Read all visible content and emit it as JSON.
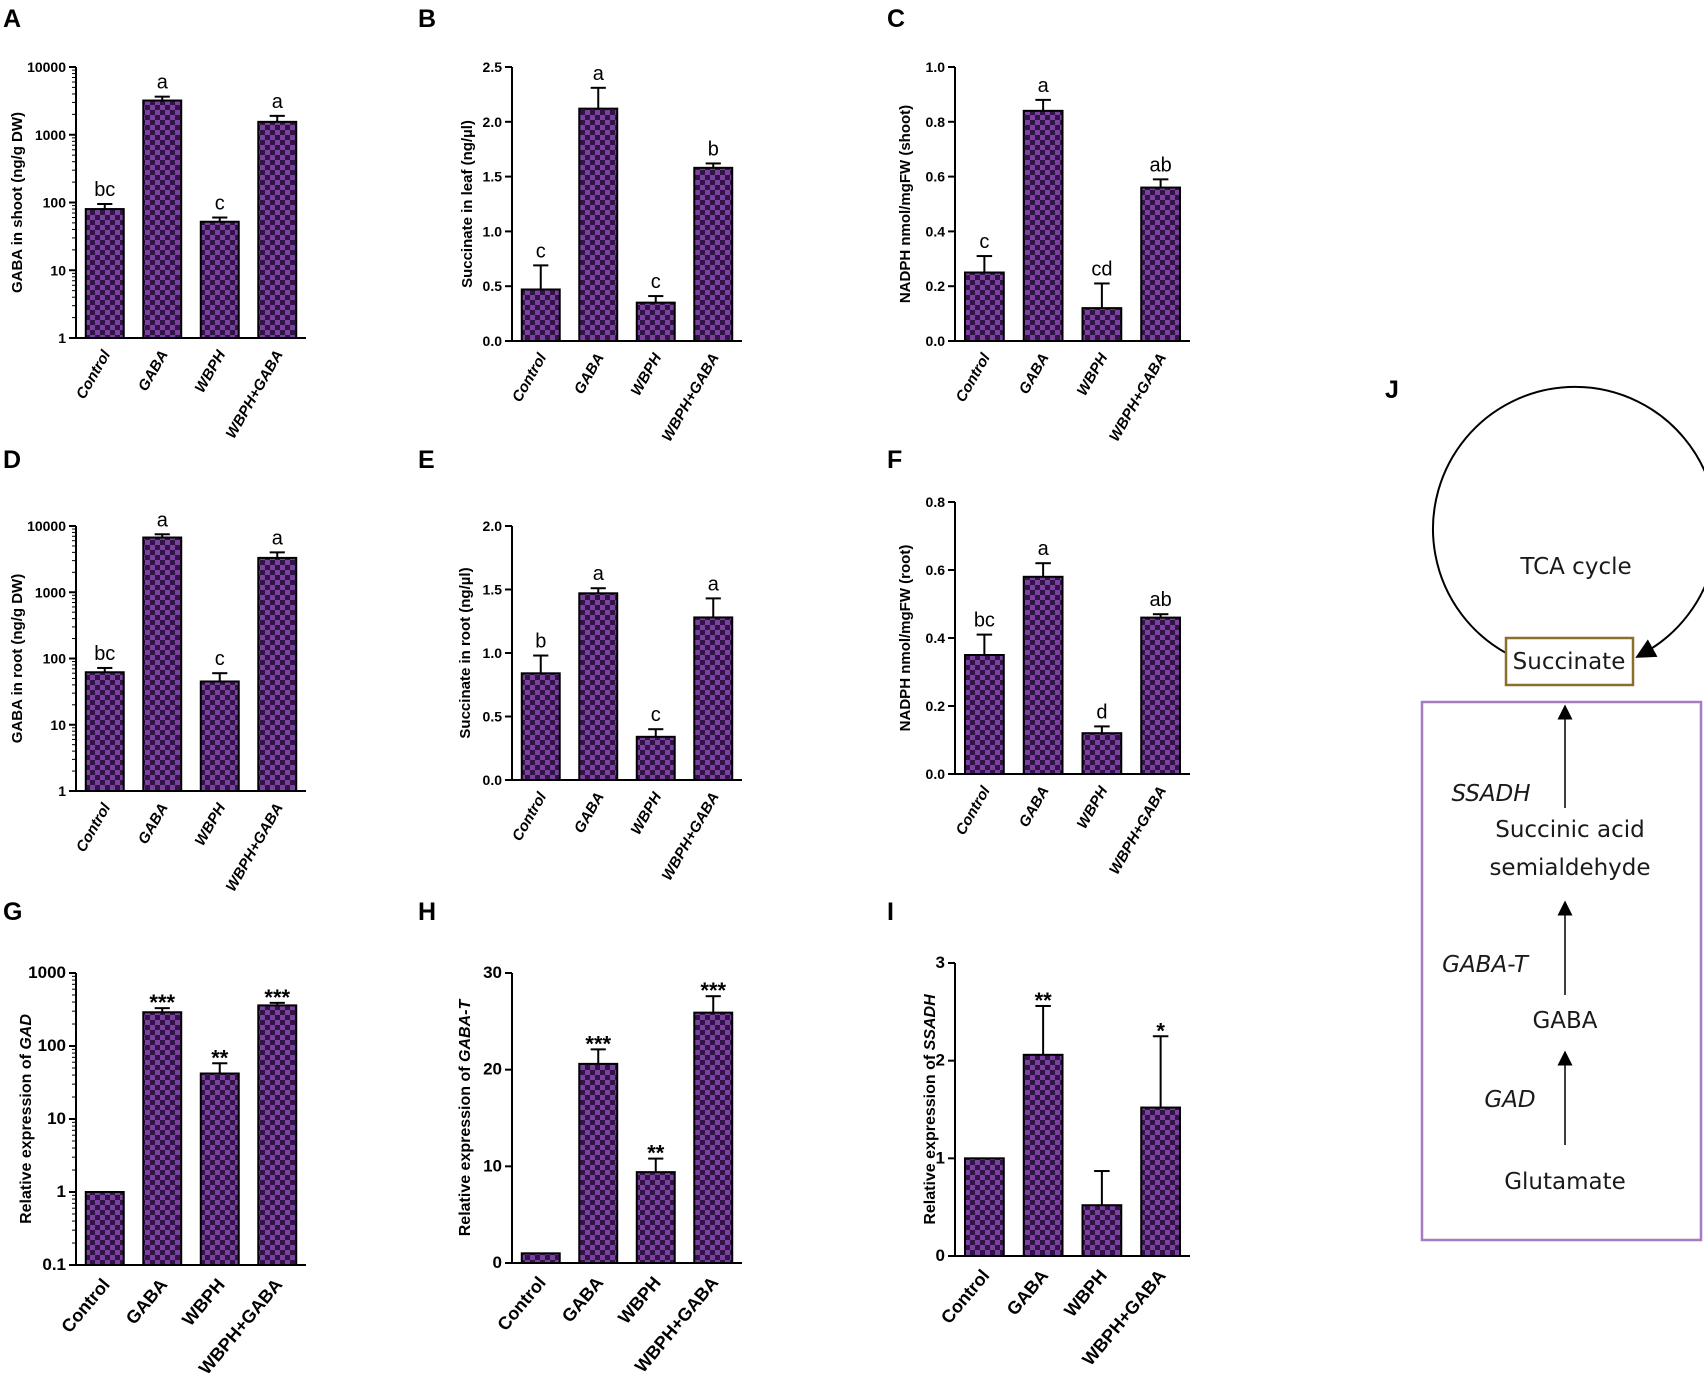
{
  "figure": {
    "panel_J_label": "J",
    "pathway": {
      "cycle_label": "TCA cycle",
      "succinate": "Succinate",
      "enzyme_ssadh": "SSADH",
      "ssa_line1": "Succinic acid",
      "ssa_line2": "semialdehyde",
      "enzyme_gabat": "GABA-T",
      "gaba": "GABA",
      "enzyme_gad": "GAD",
      "glutamate": "Glutamate"
    },
    "colors": {
      "bar_dark": "#2e1546",
      "bar_light": "#7d3fa0",
      "succinate_box": "#8b6d2c",
      "pathway_box": "#a57bc4"
    }
  },
  "chart_data": [
    {
      "panel": "A",
      "type": "bar",
      "scale": "log",
      "categories": [
        "Control",
        "GABA",
        "WBPH",
        "WBPH+GABA"
      ],
      "values": [
        80,
        3200,
        52,
        1550
      ],
      "errors": [
        95,
        3650,
        60,
        1900
      ],
      "significance": [
        "bc",
        "a",
        "c",
        "a"
      ],
      "ylabel": "GABA in shoot (ng/g DW)",
      "ylim": [
        1,
        10000
      ],
      "yticks": [
        "1",
        "10",
        "100",
        "1000",
        "10000"
      ]
    },
    {
      "panel": "B",
      "type": "bar",
      "scale": "linear",
      "categories": [
        "Control",
        "GABA",
        "WBPH",
        "WBPH+GABA"
      ],
      "values": [
        0.47,
        2.12,
        0.35,
        1.58
      ],
      "errors": [
        0.69,
        2.31,
        0.41,
        1.62
      ],
      "significance": [
        "c",
        "a",
        "c",
        "b"
      ],
      "ylabel": "Succinate in leaf (ng/µl)",
      "ylim": [
        0,
        2.5
      ],
      "yticks": [
        "0.0",
        "0.5",
        "1.0",
        "1.5",
        "2.0",
        "2.5"
      ]
    },
    {
      "panel": "C",
      "type": "bar",
      "scale": "linear",
      "categories": [
        "Control",
        "GABA",
        "WBPH",
        "WBPH+GABA"
      ],
      "values": [
        0.25,
        0.84,
        0.12,
        0.56
      ],
      "errors": [
        0.31,
        0.88,
        0.21,
        0.59
      ],
      "significance": [
        "c",
        "a",
        "cd",
        "ab"
      ],
      "ylabel": "NADPH nmol/mgFW (shoot)",
      "ylim": [
        0,
        1.0
      ],
      "yticks": [
        "0.0",
        "0.2",
        "0.4",
        "0.6",
        "0.8",
        "1.0"
      ]
    },
    {
      "panel": "D",
      "type": "bar",
      "scale": "log",
      "categories": [
        "Control",
        "GABA",
        "WBPH",
        "WBPH+GABA"
      ],
      "values": [
        62,
        6700,
        45,
        3300
      ],
      "errors": [
        72,
        7500,
        60,
        4000
      ],
      "significance": [
        "bc",
        "a",
        "c",
        "a"
      ],
      "ylabel": "GABA in root (ng/g DW)",
      "ylim": [
        1,
        10000
      ],
      "yticks": [
        "1",
        "10",
        "100",
        "1000",
        "10000"
      ]
    },
    {
      "panel": "E",
      "type": "bar",
      "scale": "linear",
      "categories": [
        "Control",
        "GABA",
        "WBPH",
        "WBPH+GABA"
      ],
      "values": [
        0.84,
        1.47,
        0.34,
        1.28
      ],
      "errors": [
        0.98,
        1.51,
        0.4,
        1.43
      ],
      "significance": [
        "b",
        "a",
        "c",
        "a"
      ],
      "ylabel": "Succinate in root (ng/µl)",
      "ylim": [
        0,
        2.0
      ],
      "yticks": [
        "0.0",
        "0.5",
        "1.0",
        "1.5",
        "2.0"
      ]
    },
    {
      "panel": "F",
      "type": "bar",
      "scale": "linear",
      "categories": [
        "Control",
        "GABA",
        "WBPH",
        "WBPH+GABA"
      ],
      "values": [
        0.35,
        0.58,
        0.12,
        0.46
      ],
      "errors": [
        0.41,
        0.62,
        0.14,
        0.47
      ],
      "significance": [
        "bc",
        "a",
        "d",
        "ab"
      ],
      "ylabel": "NADPH nmol/mgFW (root)",
      "ylim": [
        0,
        0.8
      ],
      "yticks": [
        "0.0",
        "0.2",
        "0.4",
        "0.6",
        "0.8"
      ]
    },
    {
      "panel": "G",
      "type": "bar",
      "scale": "log",
      "categories": [
        "Control",
        "GABA",
        "WBPH",
        "WBPH+GABA"
      ],
      "values": [
        1,
        290,
        42,
        360
      ],
      "errors": [
        1,
        330,
        58,
        390
      ],
      "significance": [
        "",
        "***",
        "**",
        "***"
      ],
      "ylabel_prefix": "Relative expression of ",
      "ylabel_gene": "GAD",
      "ylim": [
        0.1,
        1000
      ],
      "yticks": [
        "0.1",
        "1",
        "10",
        "100",
        "1000"
      ]
    },
    {
      "panel": "H",
      "type": "bar",
      "scale": "linear",
      "categories": [
        "Control",
        "GABA",
        "WBPH",
        "WBPH+GABA"
      ],
      "values": [
        1,
        20.6,
        9.4,
        25.9
      ],
      "errors": [
        1,
        22.1,
        10.8,
        27.6
      ],
      "significance": [
        "",
        "***",
        "**",
        "***"
      ],
      "ylabel_prefix": "Relative expression of ",
      "ylabel_gene": "GABA-T",
      "ylim": [
        0,
        30
      ],
      "yticks": [
        "0",
        "10",
        "20",
        "30"
      ]
    },
    {
      "panel": "I",
      "type": "bar",
      "scale": "linear",
      "categories": [
        "Control",
        "GABA",
        "WBPH",
        "WBPH+GABA"
      ],
      "values": [
        1,
        2.06,
        0.52,
        1.52
      ],
      "errors": [
        1,
        2.56,
        0.87,
        2.25
      ],
      "significance": [
        "",
        "**",
        "",
        "*"
      ],
      "ylabel_prefix": "Relative expression of ",
      "ylabel_gene": "SSADH",
      "ylim": [
        0,
        3
      ],
      "yticks": [
        "0",
        "1",
        "2",
        "3"
      ]
    }
  ]
}
